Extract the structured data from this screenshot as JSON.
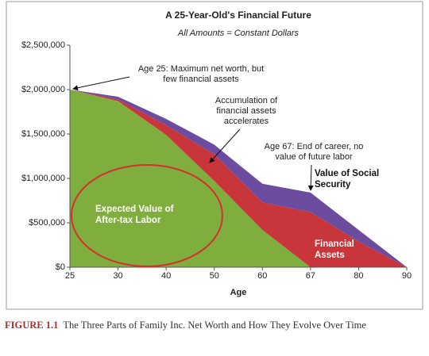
{
  "chart_data": {
    "type": "stacked-area",
    "title": "A 25-Year-Old's Financial Future",
    "subtitle": "All Amounts = Constant Dollars",
    "x_label": "Age",
    "categories": [
      "25",
      "30",
      "40",
      "50",
      "60",
      "67",
      "80",
      "90"
    ],
    "series": [
      {
        "name": "Expected Value of After-tax Labor",
        "color": "#7fae3f",
        "values": [
          2000000,
          1870000,
          1490000,
          970000,
          420000,
          0,
          0,
          0
        ]
      },
      {
        "name": "Financial Assets",
        "color": "#c8363b",
        "values": [
          0,
          20000,
          110000,
          300000,
          310000,
          620000,
          290000,
          0
        ]
      },
      {
        "name": "Value of Social Security",
        "color": "#6b4c9e",
        "values": [
          0,
          30000,
          70000,
          110000,
          210000,
          220000,
          130000,
          0
        ]
      }
    ],
    "ylim": [
      0,
      2500000
    ],
    "yticks": [
      {
        "value": 0,
        "label": "$0"
      },
      {
        "value": 500000,
        "label": "$500,000"
      },
      {
        "value": 1000000,
        "label": "$1,000,000"
      },
      {
        "value": 1500000,
        "label": "$1,500,000"
      },
      {
        "value": 2000000,
        "label": "$2,000,000"
      },
      {
        "value": 2500000,
        "label": "$2,500,000"
      }
    ],
    "annotations": [
      "Age 25: Maximum net worth, but few financial assets",
      "Accumulation of financial assets accelerates",
      "Age 67: End of career, no value of future labor"
    ]
  },
  "figure_caption": {
    "label": "FIGURE 1.1",
    "text": "The Three Parts of Family Inc. Net Worth and How They Evolve Over Time"
  }
}
